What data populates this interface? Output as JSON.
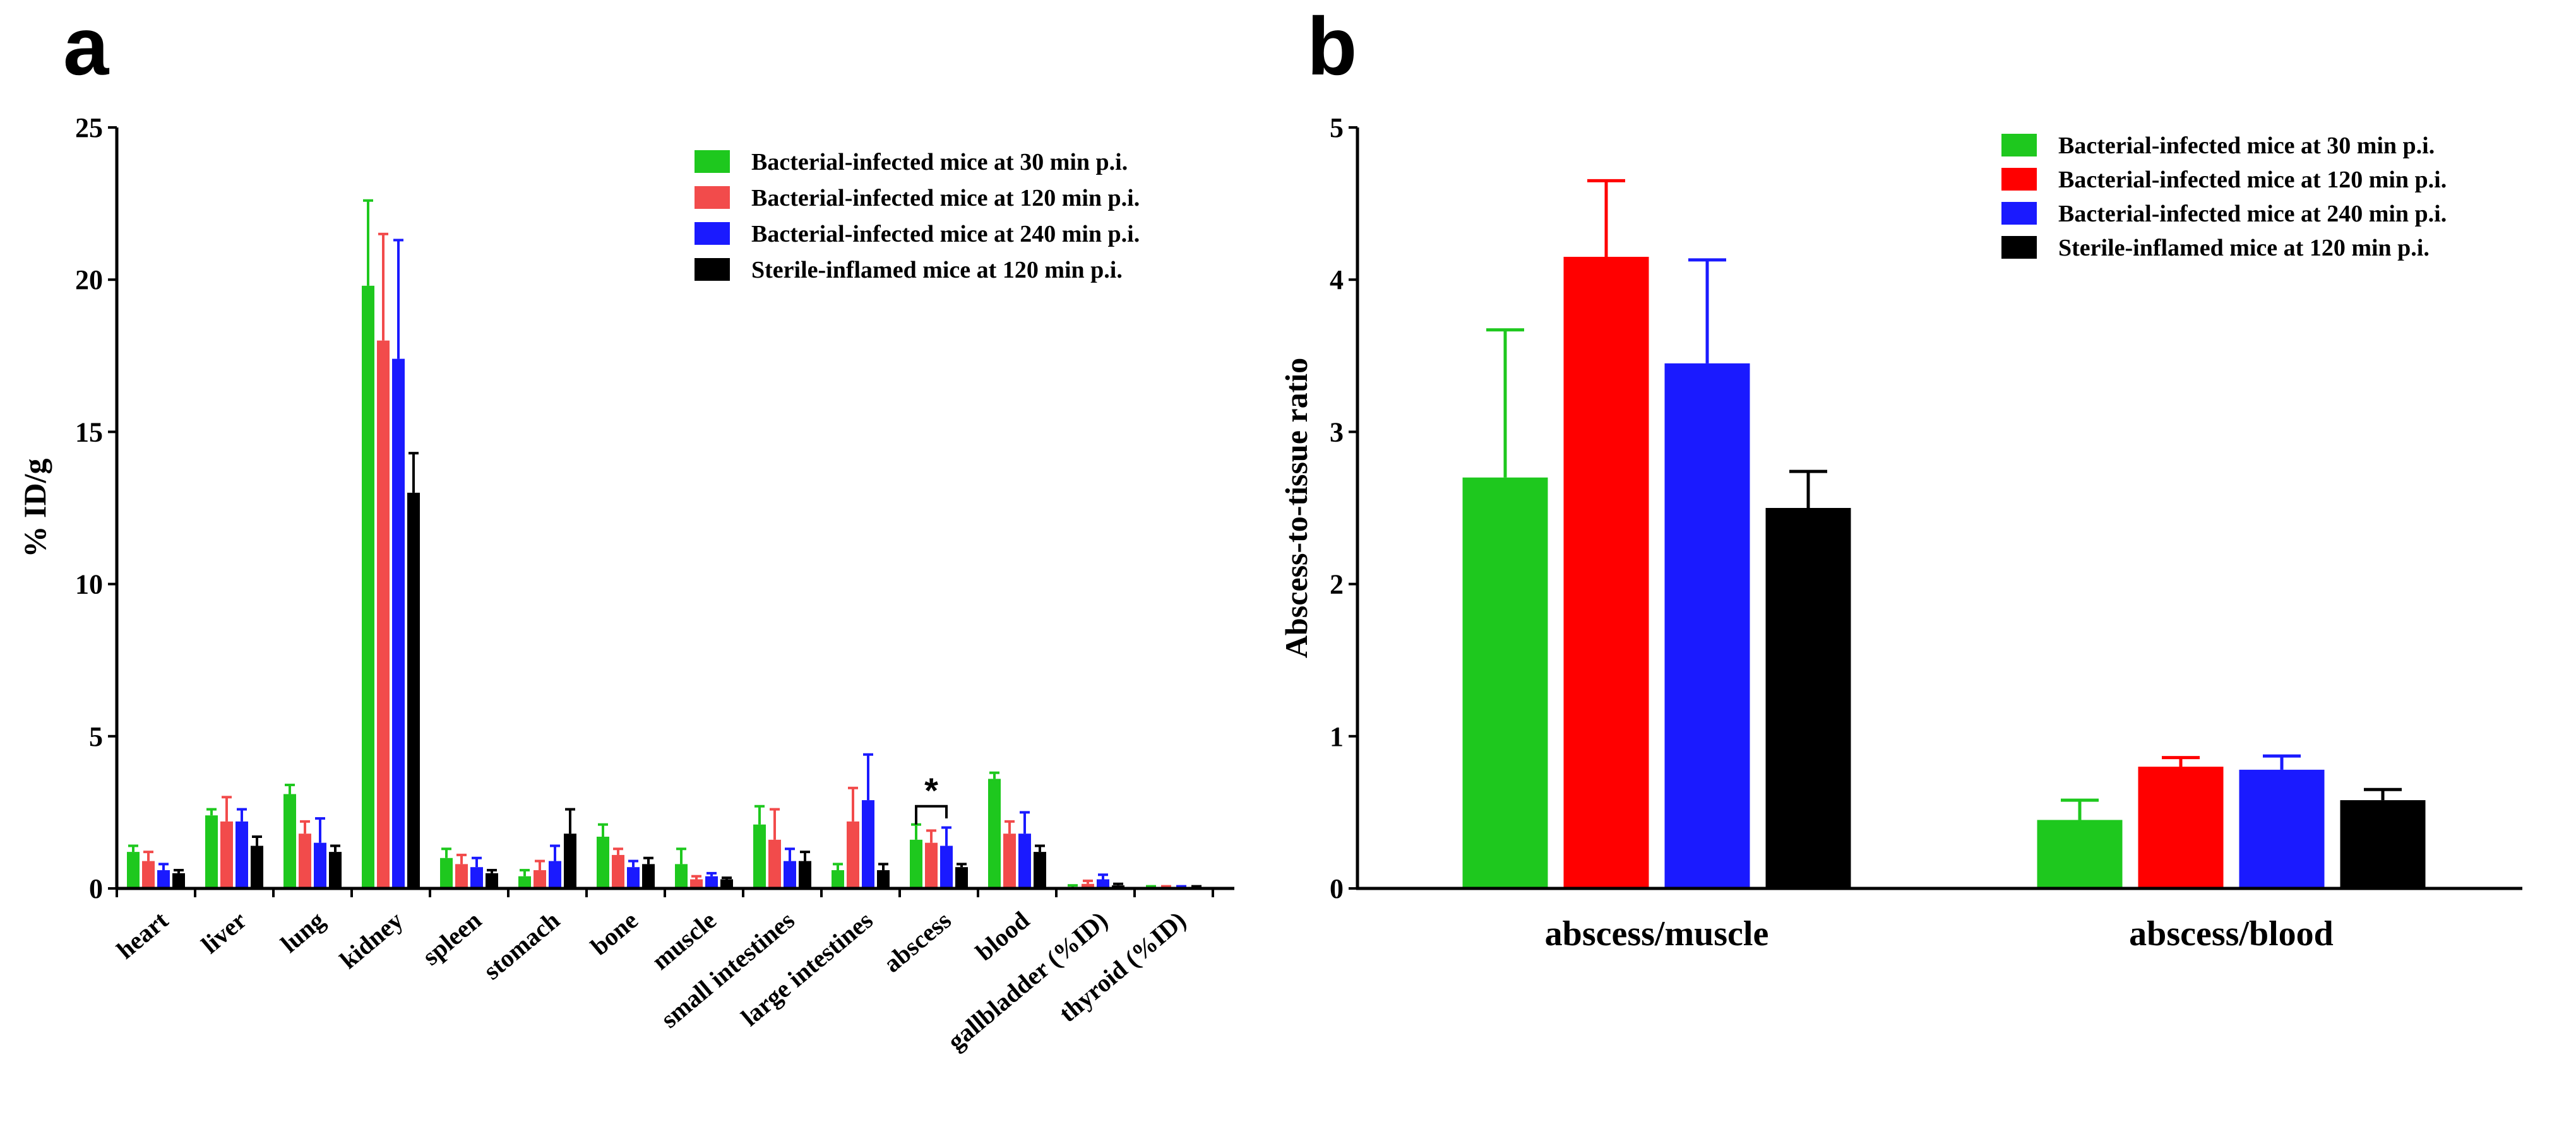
{
  "chart_data": [
    {
      "panel": "a",
      "type": "bar",
      "ylabel": "% ID/g",
      "xlabel": "",
      "ylim": [
        0,
        25
      ],
      "yticks": [
        0,
        5,
        10,
        15,
        20,
        25
      ],
      "categories": [
        "heart",
        "liver",
        "lung",
        "kidney",
        "spleen",
        "stomach",
        "bone",
        "muscle",
        "small intestines",
        "large intestines",
        "abscess",
        "blood",
        "gallbladder (%ID)",
        "thyroid (%ID)"
      ],
      "series": [
        {
          "name": "Bacterial-infected mice at 30 min p.i.",
          "color": "#1ec81e",
          "values": [
            1.2,
            2.4,
            3.1,
            19.8,
            1.0,
            0.4,
            1.7,
            0.8,
            2.1,
            0.6,
            1.6,
            3.6,
            0.05,
            0.05
          ],
          "errors": [
            0.2,
            0.2,
            0.3,
            2.8,
            0.3,
            0.2,
            0.4,
            0.5,
            0.6,
            0.2,
            0.5,
            0.2,
            0.05,
            0.02
          ]
        },
        {
          "name": "Bacterial-infected mice at 120 min p.i.",
          "color": "#f24b4b",
          "values": [
            0.9,
            2.2,
            1.8,
            18.0,
            0.8,
            0.6,
            1.1,
            0.3,
            1.6,
            2.2,
            1.5,
            1.8,
            0.15,
            0.05
          ],
          "errors": [
            0.3,
            0.8,
            0.4,
            3.5,
            0.3,
            0.3,
            0.2,
            0.1,
            1.0,
            1.1,
            0.4,
            0.4,
            0.1,
            0.02
          ]
        },
        {
          "name": "Bacterial-infected mice at 240 min p.i.",
          "color": "#1a1aff",
          "values": [
            0.6,
            2.2,
            1.5,
            17.4,
            0.7,
            0.9,
            0.7,
            0.4,
            0.9,
            2.9,
            1.4,
            1.8,
            0.3,
            0.05
          ],
          "errors": [
            0.2,
            0.4,
            0.8,
            3.9,
            0.3,
            0.5,
            0.2,
            0.1,
            0.4,
            1.5,
            0.6,
            0.7,
            0.15,
            0.02
          ]
        },
        {
          "name": "Sterile-inflamed mice at 120 min p.i.",
          "color": "#000000",
          "values": [
            0.5,
            1.4,
            1.2,
            13.0,
            0.5,
            1.8,
            0.8,
            0.3,
            0.9,
            0.6,
            0.7,
            1.2,
            0.1,
            0.05
          ],
          "errors": [
            0.1,
            0.3,
            0.2,
            1.3,
            0.1,
            0.8,
            0.2,
            0.05,
            0.3,
            0.2,
            0.1,
            0.2,
            0.05,
            0.02
          ]
        }
      ],
      "annotation": {
        "text": "*",
        "category": "abscess"
      },
      "legend_position": "top-right"
    },
    {
      "panel": "b",
      "type": "bar",
      "ylabel": "Abscess-to-tissue ratio",
      "xlabel": "",
      "ylim": [
        0,
        5
      ],
      "yticks": [
        0,
        1,
        2,
        3,
        4,
        5
      ],
      "categories": [
        "abscess/muscle",
        "abscess/blood"
      ],
      "series": [
        {
          "name": "Bacterial-infected mice at 30 min p.i.",
          "color": "#1ec81e",
          "values": [
            2.7,
            0.45
          ],
          "errors": [
            0.97,
            0.13
          ]
        },
        {
          "name": "Bacterial-infected mice at 120 min p.i.",
          "color": "#ff0000",
          "values": [
            4.15,
            0.8
          ],
          "errors": [
            0.5,
            0.06
          ]
        },
        {
          "name": "Bacterial-infected mice at 240 min p.i.",
          "color": "#1a1aff",
          "values": [
            3.45,
            0.78
          ],
          "errors": [
            0.68,
            0.09
          ]
        },
        {
          "name": "Sterile-inflamed mice at 120 min p.i.",
          "color": "#000000",
          "values": [
            2.5,
            0.58
          ],
          "errors": [
            0.24,
            0.07
          ]
        }
      ],
      "legend_position": "top-right"
    }
  ]
}
